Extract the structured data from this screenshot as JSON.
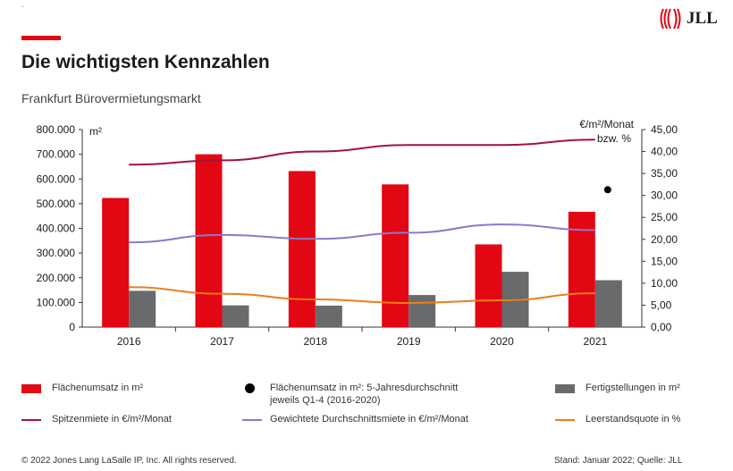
{
  "header": {
    "title": "Die wichtigsten Kennzahlen",
    "subtitle": "Frankfurt Bürovermietungsmarkt",
    "logo_text": "JLL",
    "tick": "`"
  },
  "colors": {
    "accent": "#E30613",
    "bars_primary": "#E30613",
    "bars_secondary": "#696A6C",
    "spitzenmiete": "#A1143C",
    "durchschnittsmiete": "#8C78C8",
    "leerstandsquote": "#EE7D1C",
    "average_marker": "#000000"
  },
  "chart_data": {
    "type": "bar",
    "categories": [
      "2016",
      "2017",
      "2018",
      "2019",
      "2020",
      "2021"
    ],
    "left_axis": {
      "unit_label": "m²",
      "ylim": [
        0,
        800000
      ],
      "ticks": [
        "0",
        "100.000",
        "200.000",
        "300.000",
        "400.000",
        "500.000",
        "600.000",
        "700.000",
        "800.000"
      ]
    },
    "right_axis": {
      "unit_label_1": "€/m²/Monat",
      "unit_label_2": "bzw. %",
      "ylim": [
        0,
        45
      ],
      "ticks": [
        "0,00",
        "5,00",
        "10,00",
        "15,00",
        "20,00",
        "25,00",
        "30,00",
        "35,00",
        "40,00",
        "45,00"
      ]
    },
    "series": [
      {
        "name": "Flächenumsatz in m²",
        "type": "bar",
        "axis": "left",
        "values": [
          523000,
          700000,
          632000,
          578000,
          335000,
          467000
        ]
      },
      {
        "name": "Fertigstellungen in m²",
        "type": "bar",
        "axis": "left",
        "values": [
          147000,
          88000,
          87000,
          130000,
          224000,
          190000
        ]
      },
      {
        "name": "Spitzenmiete in €/m²/Monat",
        "type": "line",
        "axis": "right",
        "values": [
          37.0,
          38.0,
          40.0,
          41.5,
          41.5,
          42.7
        ]
      },
      {
        "name": "Gewichtete Durchschnittsmiete in €/m²/Monat",
        "type": "line",
        "axis": "right",
        "values": [
          19.3,
          21.0,
          20.1,
          21.5,
          23.4,
          22.1
        ]
      },
      {
        "name": "Leerstandsquote in %",
        "type": "line",
        "axis": "right",
        "values": [
          9.1,
          7.6,
          6.3,
          5.5,
          6.1,
          7.7
        ]
      },
      {
        "name": "Flächenumsatz in m²: 5-Jahresdurchschnitt jeweils Q1-4 (2016-2020)",
        "type": "marker",
        "axis": "right",
        "category": "2021",
        "value": 31.3
      }
    ],
    "grid": false,
    "legend_position": "bottom"
  },
  "legend": {
    "umsatz": "Flächenumsatz in m²",
    "avg_line1": "Flächenumsatz in m²: 5-Jahresdurchschnitt",
    "avg_line2": "jeweils Q1-4 (2016-2020)",
    "fertig": "Fertigstellungen in m²",
    "spitzen": "Spitzenmiete in €/m²/Monat",
    "durchschnitt": "Gewichtete Durchschnittsmiete in €/m²/Monat",
    "leerstand": "Leerstandsquote in %"
  },
  "footer": {
    "copyright": "© 2022 Jones Lang LaSalle IP, Inc. All rights reserved.",
    "source": "Stand: Januar 2022; Quelle: JLL"
  }
}
